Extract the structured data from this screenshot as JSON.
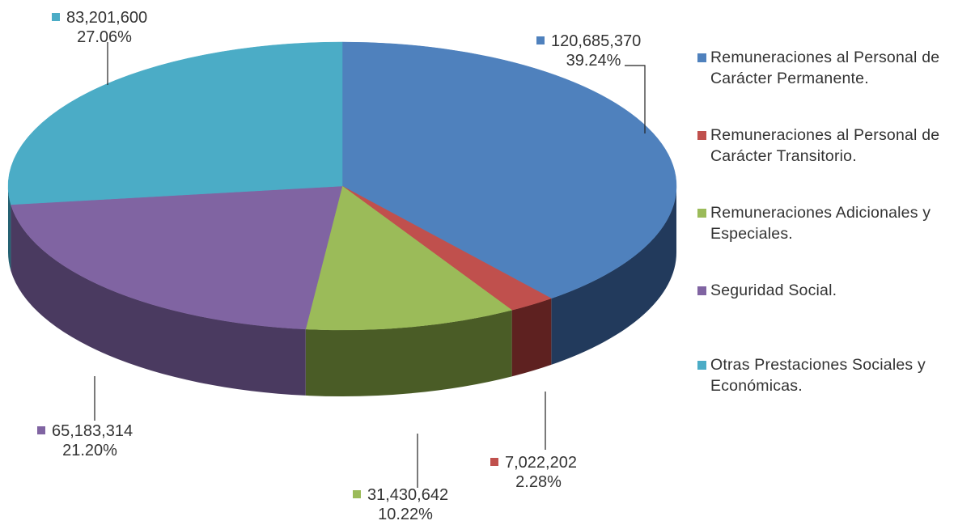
{
  "chart_data": {
    "type": "pie",
    "style": "3d",
    "title": "",
    "legend_position": "right",
    "slices": [
      {
        "label": "Remuneraciones al Personal de Carácter Permanente.",
        "value": 120685370,
        "value_text": "120,685,370",
        "percent_text": "39.24%",
        "color": "#4F81BD",
        "side_color": "#223A5C"
      },
      {
        "label": "Remuneraciones al Personal de Carácter Transitorio.",
        "value": 7022202,
        "value_text": "7,022,202",
        "percent_text": "2.28%",
        "color": "#C0504D",
        "side_color": "#5E2120"
      },
      {
        "label": "Remuneraciones Adicionales y Especiales.",
        "value": 31430642,
        "value_text": "31,430,642",
        "percent_text": "10.22%",
        "color": "#9BBB59",
        "side_color": "#4A5C26"
      },
      {
        "label": "Seguridad Social.",
        "value": 65183314,
        "value_text": "65,183,314",
        "percent_text": "21.20%",
        "color": "#8064A2",
        "side_color": "#4A3A60"
      },
      {
        "label": "Otras Prestaciones Sociales y Económicas.",
        "value": 83201600,
        "value_text": "83,201,600",
        "percent_text": "27.06%",
        "color": "#4BACC6",
        "side_color": "#256172"
      }
    ]
  }
}
